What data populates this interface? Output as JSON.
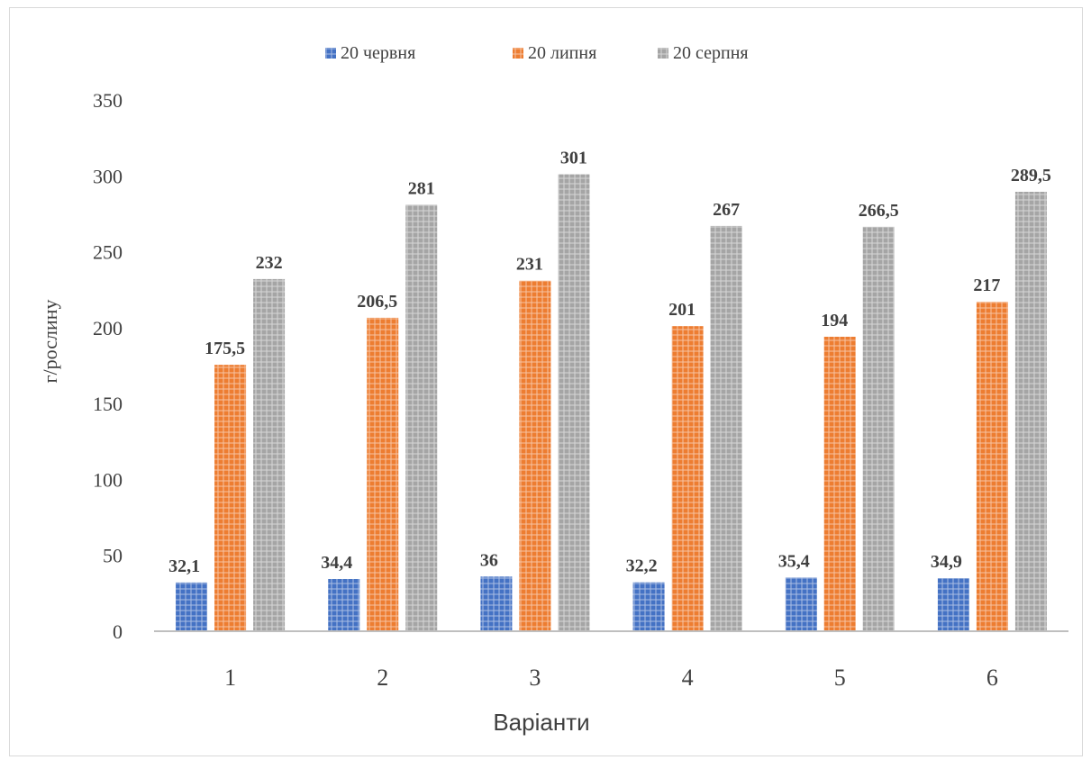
{
  "chart_data": {
    "type": "bar",
    "title": "",
    "xlabel": "Варіанти",
    "ylabel": "г/рослину",
    "categories": [
      "1",
      "2",
      "3",
      "4",
      "5",
      "6"
    ],
    "ylim": [
      0,
      350
    ],
    "yticks": [
      0,
      50,
      100,
      150,
      200,
      250,
      300,
      350
    ],
    "grid": false,
    "legend_position": "top",
    "series": [
      {
        "name": "20 червня",
        "color": "#4472c4",
        "values": [
          32.1,
          34.4,
          36,
          32.2,
          35.4,
          34.9
        ],
        "labels": [
          "32,1",
          "34,4",
          "36",
          "32,2",
          "35,4",
          "34,9"
        ]
      },
      {
        "name": "20 липня",
        "color": "#ed7d31",
        "values": [
          175.5,
          206.5,
          231,
          201,
          194,
          217
        ],
        "labels": [
          "175,5",
          "206,5",
          "231",
          "201",
          "194",
          "217"
        ]
      },
      {
        "name": "20 серпня",
        "color": "#a5a5a5",
        "values": [
          232,
          281,
          301,
          267,
          266.5,
          289.5
        ],
        "labels": [
          "232",
          "281",
          "301",
          "267",
          "266,5",
          "289,5"
        ]
      }
    ]
  }
}
